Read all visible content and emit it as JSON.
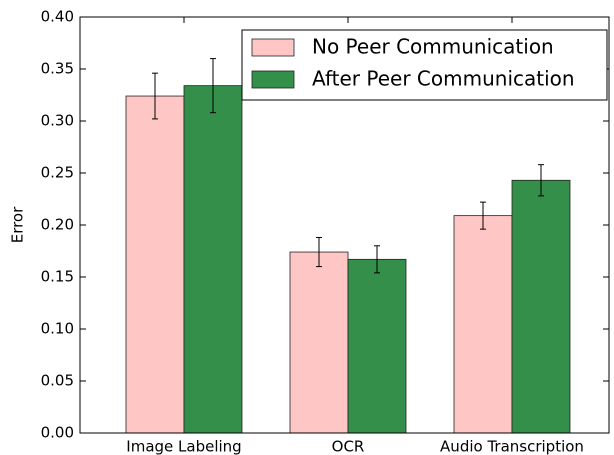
{
  "chart_data": {
    "type": "bar",
    "categories": [
      "Image Labeling",
      "OCR",
      "Audio Transcription"
    ],
    "series": [
      {
        "name": "No Peer Communication",
        "color": "#ffc6c6",
        "values": [
          0.324,
          0.174,
          0.209
        ],
        "errors": [
          0.022,
          0.014,
          0.013
        ]
      },
      {
        "name": "After Peer Communication",
        "color": "#348f4a",
        "values": [
          0.334,
          0.167,
          0.243
        ],
        "errors": [
          0.026,
          0.013,
          0.015
        ]
      }
    ],
    "ylabel": "Error",
    "ylim": [
      0,
      0.4
    ],
    "yticks": [
      {
        "value": 0,
        "label": "0.00"
      },
      {
        "value": 0.05,
        "label": "0.05"
      },
      {
        "value": 0.1,
        "label": "0.10"
      },
      {
        "value": 0.15,
        "label": "0.15"
      },
      {
        "value": 0.2,
        "label": "0.20"
      },
      {
        "value": 0.25,
        "label": "0.25"
      },
      {
        "value": 0.3,
        "label": "0.30"
      },
      {
        "value": 0.35,
        "label": "0.35"
      },
      {
        "value": 0.4,
        "label": "0.40"
      }
    ],
    "legend": "upper right"
  }
}
